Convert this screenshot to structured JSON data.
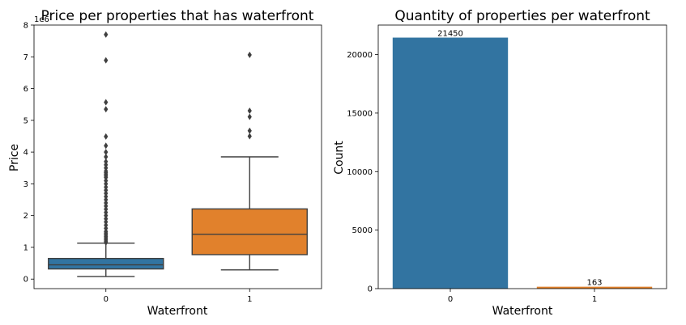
{
  "chart_data": [
    {
      "type": "box",
      "title": "Price per properties that has waterfront",
      "xlabel": "Waterfront",
      "ylabel": "Price",
      "offset_label": "1e6",
      "categories": [
        "0",
        "1"
      ],
      "ylim": [
        -0.3,
        8.0
      ],
      "yticks": [
        0,
        1,
        2,
        3,
        4,
        5,
        6,
        7,
        8
      ],
      "tick_labels": [
        "0",
        "1",
        "2",
        "3",
        "4",
        "5",
        "6",
        "7",
        "8"
      ],
      "boxes": [
        {
          "category": "0",
          "color": "#3274a1",
          "whisker_low": 0.08,
          "q1": 0.32,
          "median": 0.45,
          "q3": 0.65,
          "whisker_high": 1.13,
          "outliers": [
            7.7,
            6.89,
            5.57,
            5.35,
            4.49,
            4.2,
            4.0,
            3.85,
            3.7,
            3.6,
            3.5,
            3.4,
            3.35,
            3.3,
            3.25,
            3.2,
            3.1,
            3.0,
            2.9,
            2.8,
            2.7,
            2.6,
            2.5,
            2.4,
            2.3,
            2.2,
            2.1,
            2.0,
            1.9,
            1.8,
            1.7,
            1.6,
            1.5,
            1.45,
            1.4,
            1.35,
            1.3,
            1.25,
            1.2,
            1.15
          ]
        },
        {
          "category": "1",
          "color": "#e1812c",
          "whisker_low": 0.29,
          "q1": 0.77,
          "median": 1.41,
          "q3": 2.21,
          "whisker_high": 3.85,
          "outliers": [
            7.06,
            5.3,
            5.11,
            4.67,
            4.5
          ]
        }
      ]
    },
    {
      "type": "bar",
      "title": "Quantity of properties per waterfront",
      "xlabel": "Waterfront",
      "ylabel": "Count",
      "categories": [
        "0",
        "1"
      ],
      "values": [
        21450,
        163
      ],
      "data_labels": [
        "21450",
        "163"
      ],
      "colors": [
        "#3274a1",
        "#e1812c"
      ],
      "ylim": [
        0,
        22523
      ],
      "yticks": [
        0,
        5000,
        10000,
        15000,
        20000
      ],
      "tick_labels": [
        "0",
        "5000",
        "10000",
        "15000",
        "20000"
      ]
    }
  ]
}
